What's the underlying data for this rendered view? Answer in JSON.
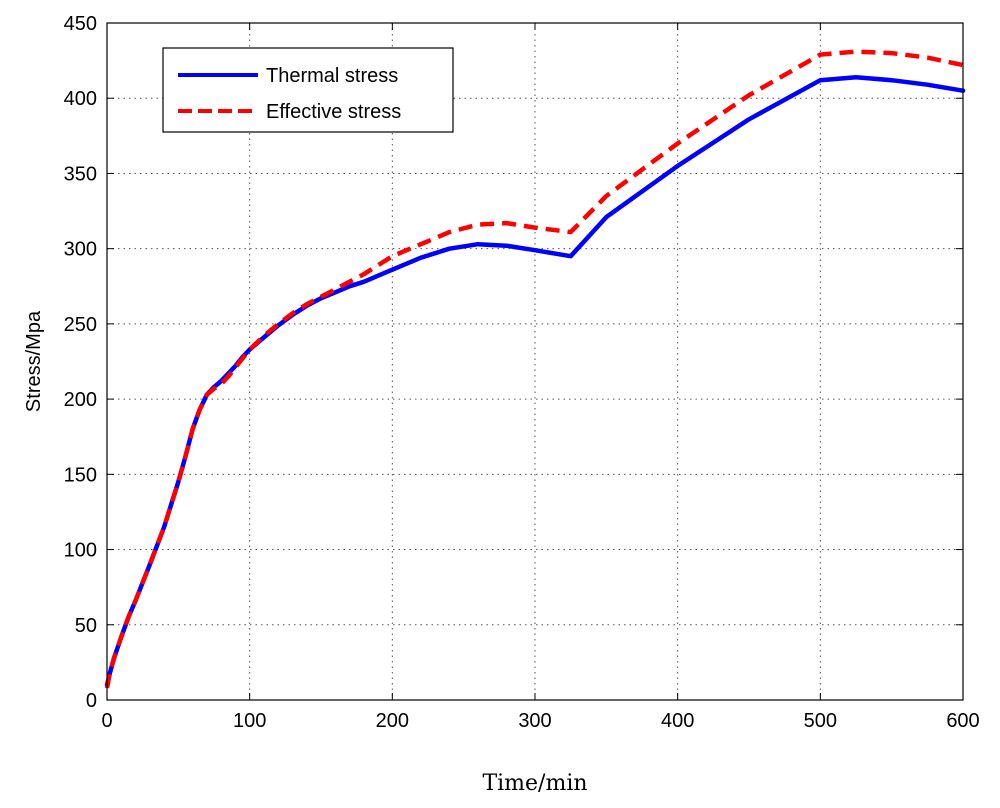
{
  "chart_data": {
    "type": "line",
    "title": "",
    "xlabel": "Time/min",
    "ylabel": "Stress/Mpa",
    "xlim": [
      0,
      600
    ],
    "ylim": [
      0,
      450
    ],
    "xticks": [
      0,
      100,
      200,
      300,
      400,
      500,
      600
    ],
    "yticks": [
      0,
      50,
      100,
      150,
      200,
      250,
      300,
      350,
      400,
      450
    ],
    "grid": true,
    "legend_position": "top-left",
    "series": [
      {
        "name": "Thermal stress",
        "color": "#0000ff",
        "style": "solid",
        "x": [
          0,
          2,
          5,
          10,
          15,
          20,
          30,
          40,
          50,
          55,
          60,
          65,
          70,
          75,
          80,
          85,
          90,
          95,
          100,
          110,
          120,
          130,
          140,
          150,
          160,
          170,
          180,
          190,
          200,
          220,
          240,
          260,
          280,
          300,
          325,
          350,
          400,
          450,
          500,
          525,
          550,
          575,
          600
        ],
        "y": [
          10,
          18,
          28,
          42,
          55,
          66,
          90,
          115,
          145,
          162,
          180,
          193,
          203,
          208,
          212,
          217,
          222,
          228,
          233,
          241,
          249,
          256,
          262,
          267,
          271,
          275,
          278,
          282,
          286,
          294,
          300,
          303,
          302,
          299,
          295,
          321,
          355,
          386,
          412,
          414,
          412,
          409,
          405
        ]
      },
      {
        "name": "Effective stress",
        "color": "#ff0000",
        "style": "dashed",
        "x": [
          0,
          2,
          5,
          10,
          15,
          20,
          30,
          40,
          50,
          55,
          60,
          65,
          70,
          75,
          80,
          85,
          90,
          95,
          100,
          110,
          120,
          130,
          140,
          150,
          160,
          170,
          180,
          190,
          200,
          220,
          240,
          260,
          280,
          300,
          325,
          350,
          400,
          450,
          500,
          525,
          550,
          575,
          600
        ],
        "y": [
          8,
          18,
          28,
          42,
          55,
          66,
          90,
          115,
          145,
          162,
          180,
          193,
          203,
          207,
          210,
          215,
          221,
          227,
          233,
          242,
          250,
          257,
          263,
          268,
          273,
          278,
          283,
          289,
          295,
          303,
          311,
          316,
          317,
          314,
          311,
          335,
          370,
          402,
          429,
          431,
          430,
          427,
          422
        ]
      }
    ]
  }
}
